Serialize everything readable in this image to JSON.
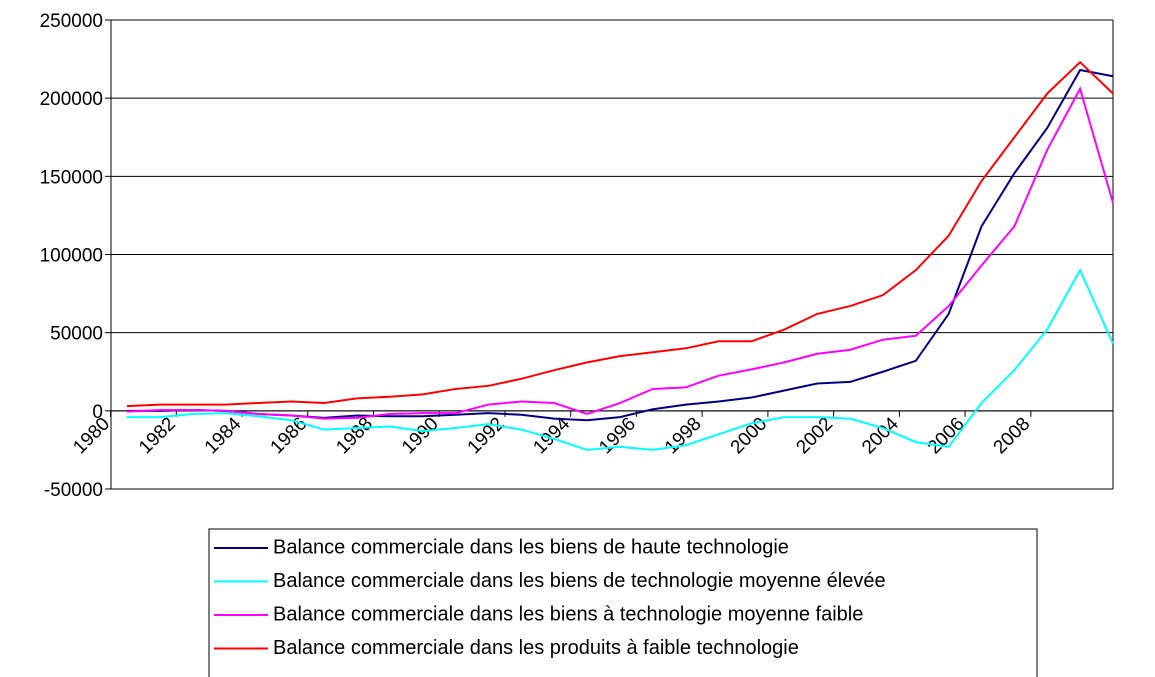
{
  "chart_data": {
    "type": "line",
    "categories": [
      "1980",
      null,
      "1982",
      null,
      "1984",
      null,
      "1986",
      null,
      "1988",
      null,
      "1990",
      null,
      "1992",
      null,
      "1994",
      null,
      "1996",
      null,
      "1998",
      null,
      "2000",
      null,
      "2002",
      null,
      "2004",
      null,
      "2006",
      null,
      "2008",
      null,
      null
    ],
    "series": [
      {
        "name": "Balance commerciale dans les biens de haute technologie",
        "color": "#000080",
        "values": [
          0,
          0,
          500,
          0,
          -2000,
          -3000,
          -4500,
          -3000,
          -3500,
          -3500,
          -2500,
          -1500,
          -2500,
          -5000,
          -6000,
          -4000,
          1000,
          4000,
          6000,
          8500,
          13000,
          17500,
          18500,
          25000,
          32000,
          62000,
          118000,
          152000,
          181000,
          218000,
          214000
        ]
      },
      {
        "name": "Balance commerciale dans les biens de technologie moyenne élevée",
        "color": "#00ffff",
        "values": [
          -4000,
          -4000,
          -2000,
          -1500,
          -3500,
          -6000,
          -12000,
          -11000,
          -10000,
          -13000,
          -11000,
          -8500,
          -12000,
          -18000,
          -25000,
          -23000,
          -25000,
          -22000,
          -15000,
          -8000,
          -4000,
          -4000,
          -5000,
          -11000,
          -20000,
          -23000,
          5000,
          26000,
          52000,
          90000,
          43000
        ]
      },
      {
        "name": "Balance commerciale dans les biens à technologie moyenne faible",
        "color": "#ff00ff",
        "values": [
          -500,
          500,
          500,
          0,
          -2000,
          -3000,
          -5000,
          -4500,
          -2000,
          -1500,
          -1500,
          4000,
          6000,
          5000,
          -2000,
          5000,
          14000,
          15000,
          22500,
          26500,
          31000,
          36500,
          39000,
          45500,
          48000,
          67000,
          93000,
          118000,
          167000,
          206000,
          133000
        ]
      },
      {
        "name": "Balance commerciale dans les produits à faible technologie",
        "color": "#ff0000",
        "values": [
          3000,
          4000,
          4000,
          4000,
          5000,
          6000,
          5000,
          8000,
          9000,
          10500,
          14000,
          16000,
          20500,
          26000,
          31000,
          35000,
          37500,
          40000,
          44500,
          44500,
          52000,
          62000,
          67000,
          74000,
          90000,
          112000,
          147000,
          175000,
          203000,
          223000,
          203000
        ]
      }
    ],
    "ylim": [
      -50000,
      250000
    ],
    "yticks": [
      -50000,
      0,
      50000,
      100000,
      150000,
      200000,
      250000
    ],
    "grid": true,
    "legend": "bottom"
  }
}
